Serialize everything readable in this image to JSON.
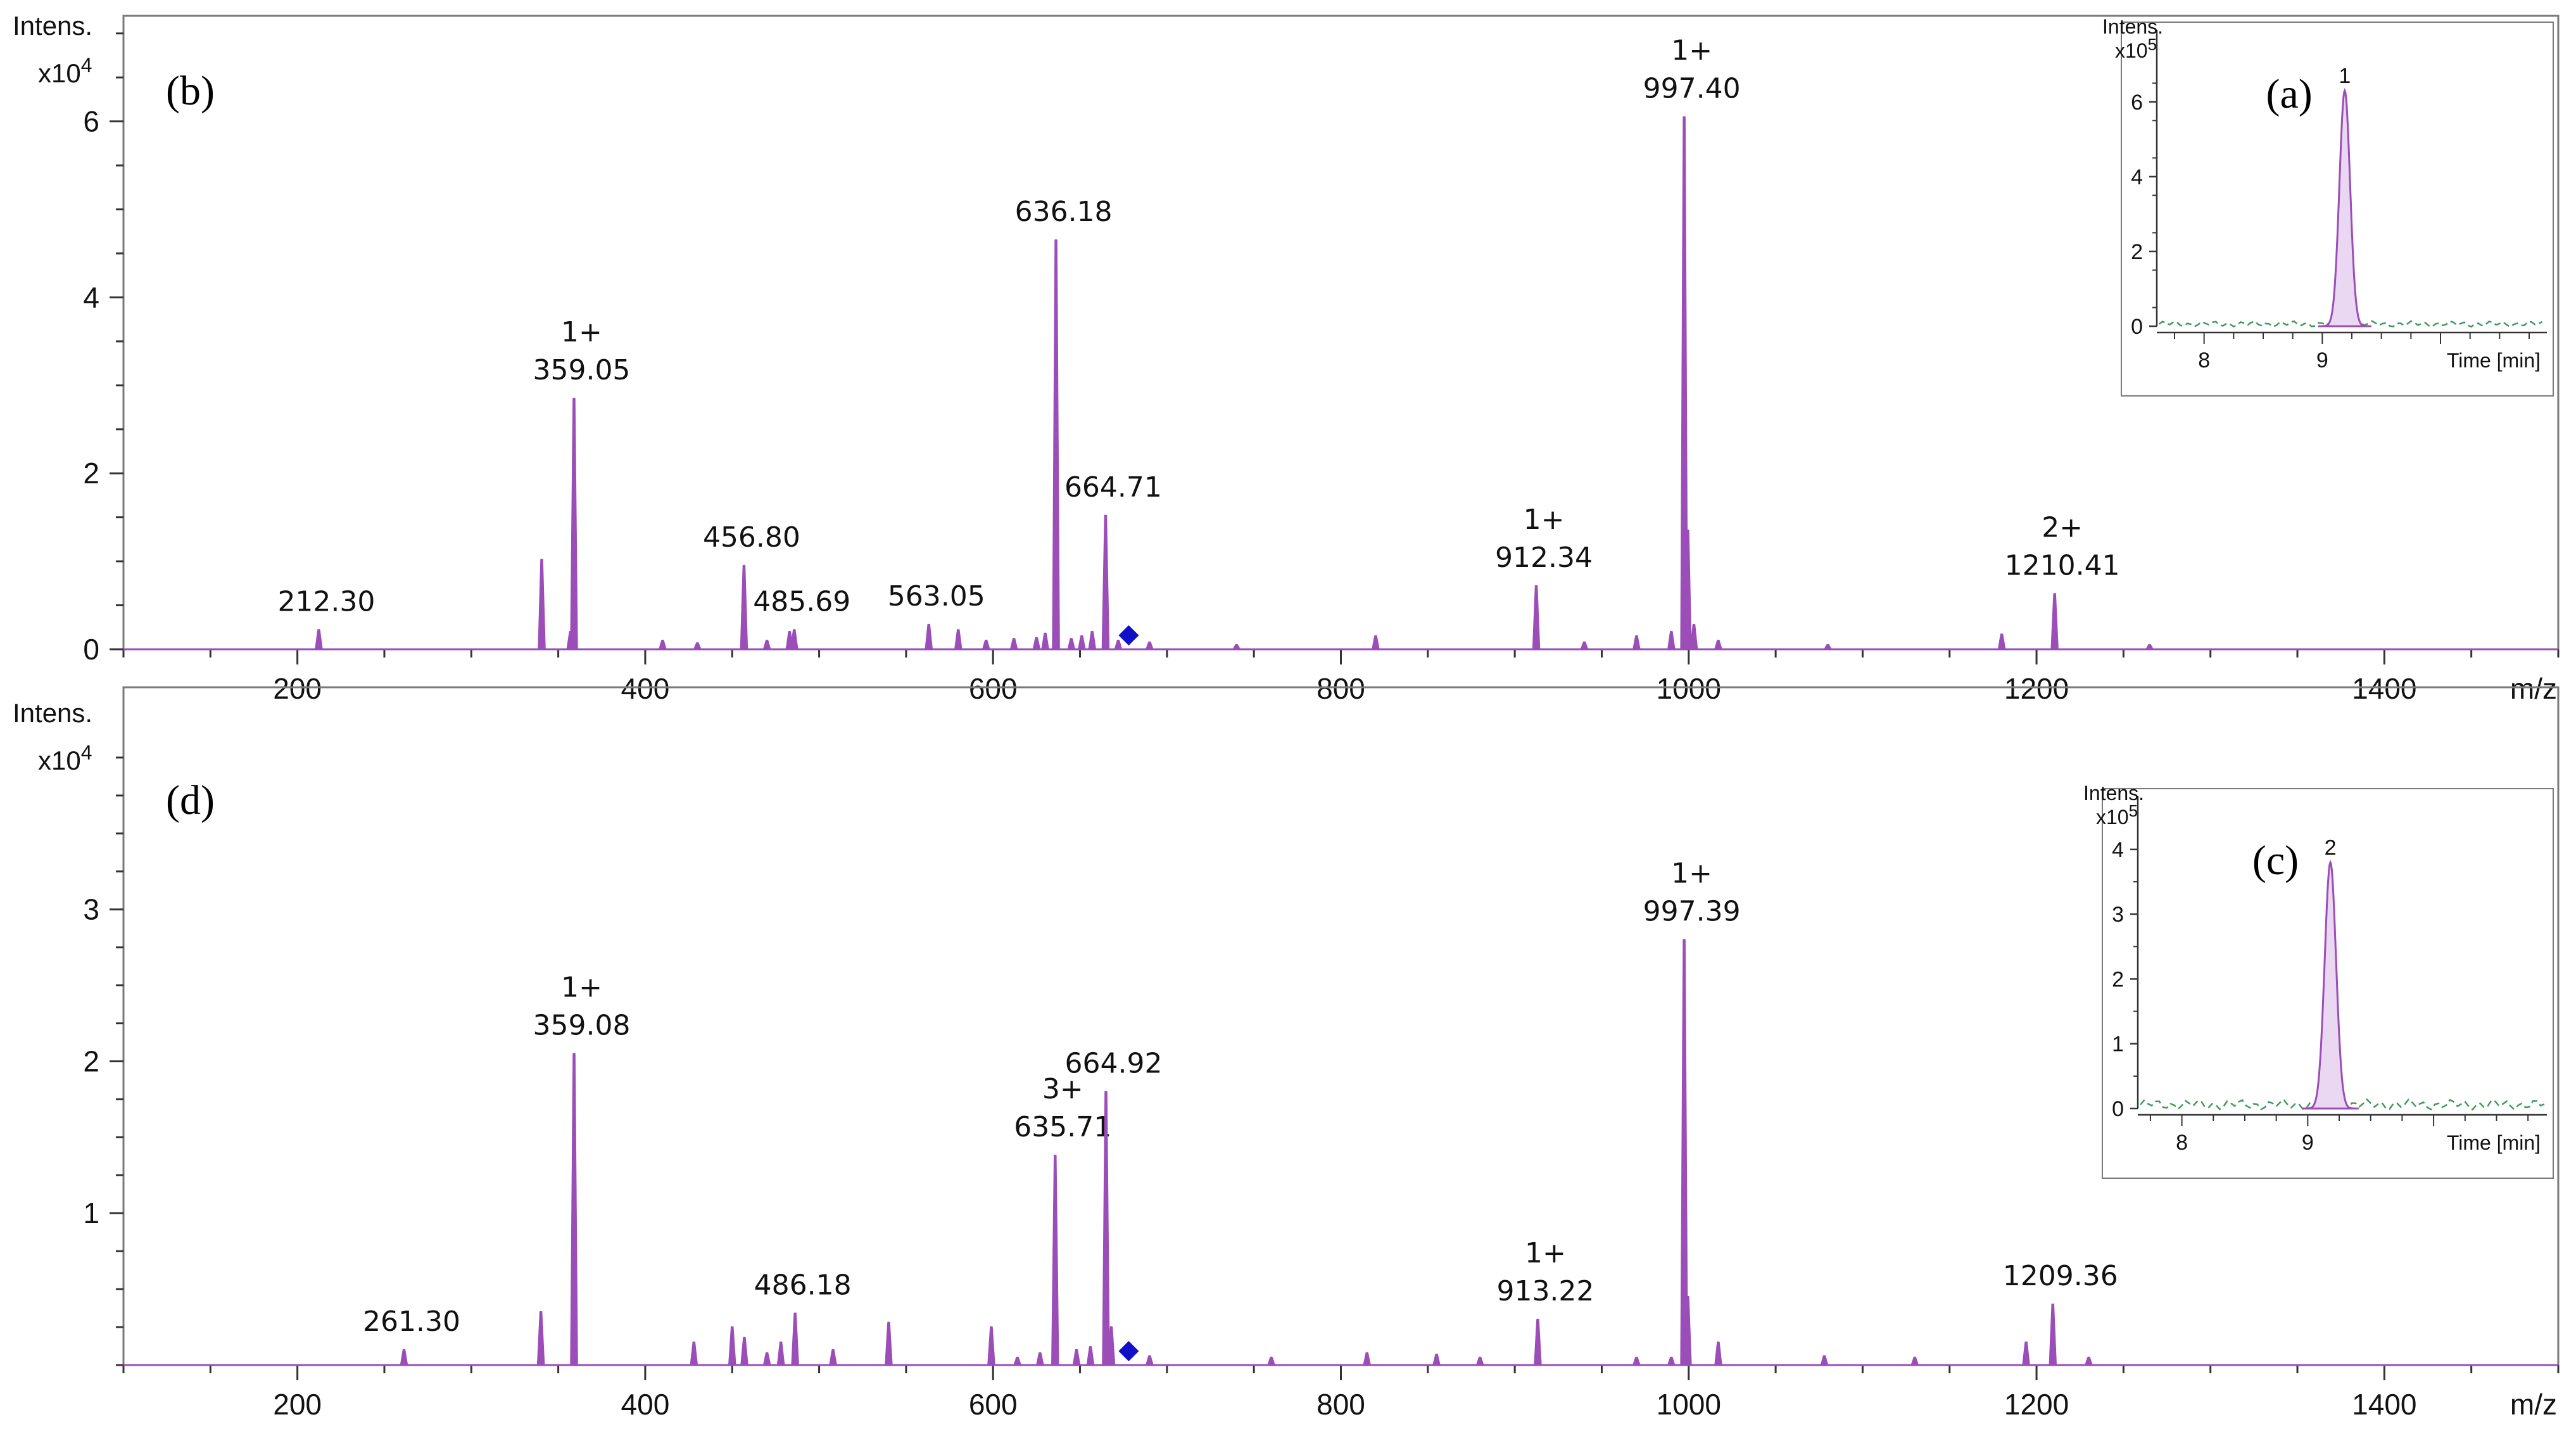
{
  "colors": {
    "spectrum": "#9B4DB8",
    "fill": "#EAD7F1",
    "marker": "#1010C8",
    "baseline": "#3E9A5A",
    "frame": "#7A7A7A"
  },
  "chart_data": [
    {
      "id": "b",
      "type": "line",
      "panel_label": "(b)",
      "y_title": "Intens.",
      "y_scale": "x10",
      "y_exp": "4",
      "x_title": "m/z",
      "xlim": [
        100,
        1500
      ],
      "ylim": [
        0,
        7.2
      ],
      "x_ticks": [
        200,
        400,
        600,
        800,
        1000,
        1200,
        1400
      ],
      "y_ticks": [
        0,
        2,
        4,
        6
      ],
      "peaks": [
        {
          "x": 212.3,
          "y": 0.22,
          "charge": "",
          "label": "212.30"
        },
        {
          "x": 340.5,
          "y": 1.02,
          "charge": "",
          "label": ""
        },
        {
          "x": 357.0,
          "y": 0.2,
          "charge": "",
          "label": ""
        },
        {
          "x": 359.05,
          "y": 2.85,
          "charge": "1+",
          "label": "359.05"
        },
        {
          "x": 410.0,
          "y": 0.1,
          "charge": "",
          "label": ""
        },
        {
          "x": 430.0,
          "y": 0.07,
          "charge": "",
          "label": ""
        },
        {
          "x": 456.8,
          "y": 0.95,
          "charge": "",
          "label": "456.80"
        },
        {
          "x": 470.0,
          "y": 0.1,
          "charge": "",
          "label": ""
        },
        {
          "x": 483.0,
          "y": 0.2,
          "charge": "",
          "label": ""
        },
        {
          "x": 485.69,
          "y": 0.22,
          "charge": "",
          "label": "485.69"
        },
        {
          "x": 563.05,
          "y": 0.28,
          "charge": "",
          "label": "563.05"
        },
        {
          "x": 580.0,
          "y": 0.22,
          "charge": "",
          "label": ""
        },
        {
          "x": 596.0,
          "y": 0.1,
          "charge": "",
          "label": ""
        },
        {
          "x": 612.0,
          "y": 0.12,
          "charge": "",
          "label": ""
        },
        {
          "x": 625.0,
          "y": 0.13,
          "charge": "",
          "label": ""
        },
        {
          "x": 630.0,
          "y": 0.18,
          "charge": "",
          "label": ""
        },
        {
          "x": 636.18,
          "y": 4.65,
          "charge": "",
          "label": "636.18"
        },
        {
          "x": 645.0,
          "y": 0.12,
          "charge": "",
          "label": ""
        },
        {
          "x": 651.0,
          "y": 0.15,
          "charge": "",
          "label": ""
        },
        {
          "x": 657.0,
          "y": 0.2,
          "charge": "",
          "label": ""
        },
        {
          "x": 664.71,
          "y": 1.52,
          "charge": "",
          "label": "664.71"
        },
        {
          "x": 672.0,
          "y": 0.1,
          "charge": "",
          "label": ""
        },
        {
          "x": 690.0,
          "y": 0.08,
          "charge": "",
          "label": ""
        },
        {
          "x": 740.0,
          "y": 0.05,
          "charge": "",
          "label": ""
        },
        {
          "x": 820.0,
          "y": 0.15,
          "charge": "",
          "label": ""
        },
        {
          "x": 912.34,
          "y": 0.72,
          "charge": "1+",
          "label": "912.34"
        },
        {
          "x": 940.0,
          "y": 0.08,
          "charge": "",
          "label": ""
        },
        {
          "x": 970.0,
          "y": 0.15,
          "charge": "",
          "label": ""
        },
        {
          "x": 990.0,
          "y": 0.2,
          "charge": "",
          "label": ""
        },
        {
          "x": 997.4,
          "y": 6.05,
          "charge": "1+",
          "label": "997.40"
        },
        {
          "x": 999.5,
          "y": 1.35,
          "charge": "",
          "label": ""
        },
        {
          "x": 1003.0,
          "y": 0.28,
          "charge": "",
          "label": ""
        },
        {
          "x": 1017.0,
          "y": 0.1,
          "charge": "",
          "label": ""
        },
        {
          "x": 1080.0,
          "y": 0.05,
          "charge": "",
          "label": ""
        },
        {
          "x": 1180.0,
          "y": 0.17,
          "charge": "",
          "label": ""
        },
        {
          "x": 1210.41,
          "y": 0.63,
          "charge": "2+",
          "label": "1210.41"
        },
        {
          "x": 1265.0,
          "y": 0.05,
          "charge": "",
          "label": ""
        }
      ],
      "precursor_marker_x": 678,
      "inset": {
        "panel_label": "(a)",
        "y_title": "Intens.",
        "y_scale": "x10",
        "y_exp": "5",
        "x_title": "Time [min]",
        "xlim": [
          7.6,
          10.9
        ],
        "ylim": [
          0,
          7.2
        ],
        "x_ticks": [
          8,
          9
        ],
        "y_ticks": [
          0,
          2,
          4,
          6
        ],
        "peak_center": 9.19,
        "peak_height": 6.3,
        "peak_width": 0.045,
        "peak_label": "1"
      }
    },
    {
      "id": "d",
      "type": "line",
      "panel_label": "(d)",
      "y_title": "Intens.",
      "y_scale": "x10",
      "y_exp": "4",
      "x_title": "m/z",
      "xlim": [
        100,
        1500
      ],
      "ylim": [
        0,
        4.15
      ],
      "x_ticks": [
        200,
        400,
        600,
        800,
        1000,
        1200,
        1400
      ],
      "y_ticks": [
        1,
        2,
        3
      ],
      "peaks": [
        {
          "x": 261.3,
          "y": 0.1,
          "charge": "",
          "label": "261.30"
        },
        {
          "x": 340.0,
          "y": 0.35,
          "charge": "",
          "label": ""
        },
        {
          "x": 359.08,
          "y": 2.05,
          "charge": "1+",
          "label": "359.08"
        },
        {
          "x": 428.0,
          "y": 0.15,
          "charge": "",
          "label": ""
        },
        {
          "x": 450.0,
          "y": 0.25,
          "charge": "",
          "label": ""
        },
        {
          "x": 457.0,
          "y": 0.18,
          "charge": "",
          "label": ""
        },
        {
          "x": 470.0,
          "y": 0.08,
          "charge": "",
          "label": ""
        },
        {
          "x": 478.0,
          "y": 0.15,
          "charge": "",
          "label": ""
        },
        {
          "x": 486.18,
          "y": 0.34,
          "charge": "",
          "label": "486.18"
        },
        {
          "x": 508.0,
          "y": 0.1,
          "charge": "",
          "label": ""
        },
        {
          "x": 540.0,
          "y": 0.28,
          "charge": "",
          "label": ""
        },
        {
          "x": 599.0,
          "y": 0.25,
          "charge": "",
          "label": ""
        },
        {
          "x": 614.0,
          "y": 0.05,
          "charge": "",
          "label": ""
        },
        {
          "x": 627.0,
          "y": 0.08,
          "charge": "",
          "label": ""
        },
        {
          "x": 635.71,
          "y": 1.38,
          "charge": "3+",
          "label": "635.71"
        },
        {
          "x": 648.0,
          "y": 0.1,
          "charge": "",
          "label": ""
        },
        {
          "x": 656.0,
          "y": 0.12,
          "charge": "",
          "label": ""
        },
        {
          "x": 664.92,
          "y": 1.8,
          "charge": "",
          "label": "664.92"
        },
        {
          "x": 668.0,
          "y": 0.25,
          "charge": "",
          "label": ""
        },
        {
          "x": 690.0,
          "y": 0.06,
          "charge": "",
          "label": ""
        },
        {
          "x": 760.0,
          "y": 0.05,
          "charge": "",
          "label": ""
        },
        {
          "x": 815.0,
          "y": 0.08,
          "charge": "",
          "label": ""
        },
        {
          "x": 855.0,
          "y": 0.07,
          "charge": "",
          "label": ""
        },
        {
          "x": 880.0,
          "y": 0.05,
          "charge": "",
          "label": ""
        },
        {
          "x": 913.22,
          "y": 0.3,
          "charge": "1+",
          "label": "913.22"
        },
        {
          "x": 970.0,
          "y": 0.05,
          "charge": "",
          "label": ""
        },
        {
          "x": 990.0,
          "y": 0.05,
          "charge": "",
          "label": ""
        },
        {
          "x": 997.39,
          "y": 2.8,
          "charge": "1+",
          "label": "997.39"
        },
        {
          "x": 999.5,
          "y": 0.45,
          "charge": "",
          "label": ""
        },
        {
          "x": 1017.0,
          "y": 0.15,
          "charge": "",
          "label": ""
        },
        {
          "x": 1078.0,
          "y": 0.06,
          "charge": "",
          "label": ""
        },
        {
          "x": 1130.0,
          "y": 0.05,
          "charge": "",
          "label": ""
        },
        {
          "x": 1194.0,
          "y": 0.15,
          "charge": "",
          "label": ""
        },
        {
          "x": 1209.36,
          "y": 0.4,
          "charge": "",
          "label": "1209.36"
        },
        {
          "x": 1230.0,
          "y": 0.05,
          "charge": "",
          "label": ""
        }
      ],
      "precursor_marker_x": 678,
      "inset": {
        "panel_label": "(c)",
        "y_title": "Intens.",
        "y_scale": "x10",
        "y_exp": "5",
        "x_title": "Time [min]",
        "xlim": [
          7.65,
          10.9
        ],
        "ylim": [
          0,
          4.4
        ],
        "x_ticks": [
          8,
          9
        ],
        "y_ticks": [
          0,
          1,
          2,
          3,
          4
        ],
        "peak_center": 9.18,
        "peak_height": 3.8,
        "peak_width": 0.045,
        "peak_label": "2"
      }
    }
  ]
}
